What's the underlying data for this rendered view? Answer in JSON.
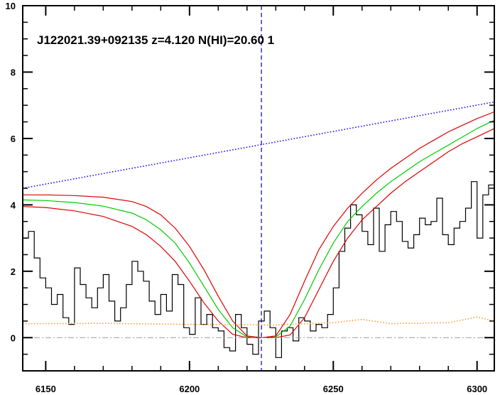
{
  "chart_data": {
    "type": "line",
    "title": "J122021.39+092135 z=4.120 N(HI)=20.60 1",
    "xlabel": "",
    "ylabel": "",
    "xlim": [
      6142,
      6306
    ],
    "ylim": [
      -1,
      10
    ],
    "x_ticks": [
      6150,
      6200,
      6250,
      6300
    ],
    "y_ticks": [
      0,
      2,
      4,
      6,
      8,
      10
    ],
    "grid": false,
    "vertical_marker_x": 6225,
    "colors": {
      "flux": "#000000",
      "model_best": "#00cc00",
      "model_bounds": "#dd0000",
      "continuum": "#2200ff",
      "error": "#ff9933",
      "zero_line": "#999999",
      "marker": "#0000aa"
    },
    "series": [
      {
        "key": "flux",
        "style": "step",
        "x": [
          6142,
          6144,
          6146,
          6148,
          6150,
          6152,
          6154,
          6156,
          6158,
          6160,
          6162,
          6164,
          6166,
          6168,
          6170,
          6172,
          6174,
          6176,
          6178,
          6180,
          6182,
          6184,
          6186,
          6188,
          6190,
          6192,
          6194,
          6196,
          6198,
          6200,
          6202,
          6204,
          6206,
          6208,
          6210,
          6212,
          6214,
          6216,
          6218,
          6220,
          6222,
          6224,
          6226,
          6228,
          6230,
          6232,
          6234,
          6236,
          6238,
          6240,
          6242,
          6244,
          6246,
          6248,
          6250,
          6252,
          6254,
          6256,
          6258,
          6260,
          6262,
          6264,
          6266,
          6268,
          6270,
          6272,
          6274,
          6276,
          6278,
          6280,
          6282,
          6284,
          6286,
          6288,
          6290,
          6292,
          6294,
          6296,
          6298,
          6300,
          6302,
          6304
        ],
        "y": [
          3.0,
          3.2,
          2.4,
          1.8,
          1.5,
          1.0,
          1.3,
          0.6,
          0.4,
          2.1,
          1.6,
          1.2,
          0.9,
          1.5,
          1.9,
          1.1,
          0.5,
          0.9,
          1.6,
          2.3,
          2.0,
          1.7,
          1.1,
          0.7,
          1.3,
          0.8,
          1.9,
          1.6,
          0.3,
          0.1,
          1.2,
          0.4,
          0.7,
          0.3,
          0.2,
          -0.3,
          -0.4,
          0.7,
          0.3,
          -0.2,
          -0.5,
          0.5,
          0.8,
          0.3,
          -0.6,
          0.2,
          0.3,
          -0.1,
          0.6,
          0.5,
          0.2,
          0.4,
          0.3,
          0.7,
          1.5,
          2.6,
          3.3,
          4.0,
          3.7,
          3.2,
          2.8,
          3.9,
          2.6,
          3.4,
          3.8,
          3.5,
          2.9,
          2.7,
          3.1,
          3.6,
          3.4,
          3.5,
          4.2,
          3.1,
          2.8,
          3.3,
          3.5,
          3.9,
          4.7,
          3.0,
          4.3,
          4.6
        ]
      },
      {
        "key": "model_best",
        "style": "line",
        "x": [
          6142,
          6150,
          6160,
          6170,
          6180,
          6185,
          6190,
          6195,
          6200,
          6205,
          6210,
          6215,
          6220,
          6225,
          6230,
          6235,
          6240,
          6245,
          6250,
          6255,
          6260,
          6265,
          6270,
          6275,
          6280,
          6285,
          6290,
          6295,
          6300,
          6306
        ],
        "y": [
          4.15,
          4.13,
          4.07,
          3.96,
          3.75,
          3.55,
          3.25,
          2.85,
          2.25,
          1.55,
          0.85,
          0.3,
          0.02,
          0.0,
          0.02,
          0.35,
          1.15,
          2.05,
          2.85,
          3.5,
          3.95,
          4.35,
          4.7,
          5.0,
          5.3,
          5.55,
          5.8,
          6.05,
          6.3,
          6.55
        ]
      },
      {
        "key": "model_upper",
        "style": "line",
        "x": [
          6142,
          6150,
          6160,
          6170,
          6180,
          6185,
          6190,
          6195,
          6200,
          6205,
          6210,
          6215,
          6220,
          6225,
          6230,
          6235,
          6240,
          6245,
          6250,
          6255,
          6260,
          6265,
          6270,
          6275,
          6280,
          6285,
          6290,
          6295,
          6300,
          6306
        ],
        "y": [
          4.3,
          4.3,
          4.28,
          4.23,
          4.1,
          3.95,
          3.7,
          3.3,
          2.75,
          2.05,
          1.25,
          0.5,
          0.05,
          0.0,
          0.05,
          0.7,
          1.7,
          2.65,
          3.35,
          3.9,
          4.35,
          4.75,
          5.1,
          5.4,
          5.7,
          5.95,
          6.2,
          6.4,
          6.6,
          6.8
        ]
      },
      {
        "key": "model_lower",
        "style": "line",
        "x": [
          6142,
          6150,
          6160,
          6170,
          6180,
          6185,
          6190,
          6195,
          6200,
          6205,
          6210,
          6215,
          6220,
          6225,
          6230,
          6235,
          6240,
          6245,
          6250,
          6255,
          6260,
          6265,
          6270,
          6275,
          6280,
          6285,
          6290,
          6295,
          6300,
          6306
        ],
        "y": [
          3.95,
          3.92,
          3.82,
          3.65,
          3.35,
          3.1,
          2.75,
          2.3,
          1.7,
          1.05,
          0.5,
          0.1,
          0.0,
          0.0,
          0.0,
          0.08,
          0.6,
          1.45,
          2.3,
          3.0,
          3.55,
          3.95,
          4.35,
          4.7,
          5.0,
          5.3,
          5.6,
          5.85,
          6.05,
          6.3
        ]
      },
      {
        "key": "continuum",
        "style": "dotted",
        "x": [
          6142,
          6306
        ],
        "y": [
          4.5,
          7.1
        ]
      },
      {
        "key": "error",
        "style": "dotted",
        "x": [
          6142,
          6170,
          6200,
          6230,
          6250,
          6260,
          6270,
          6290,
          6300,
          6306
        ],
        "y": [
          0.42,
          0.43,
          0.4,
          0.38,
          0.45,
          0.55,
          0.42,
          0.45,
          0.62,
          0.5
        ]
      }
    ]
  }
}
